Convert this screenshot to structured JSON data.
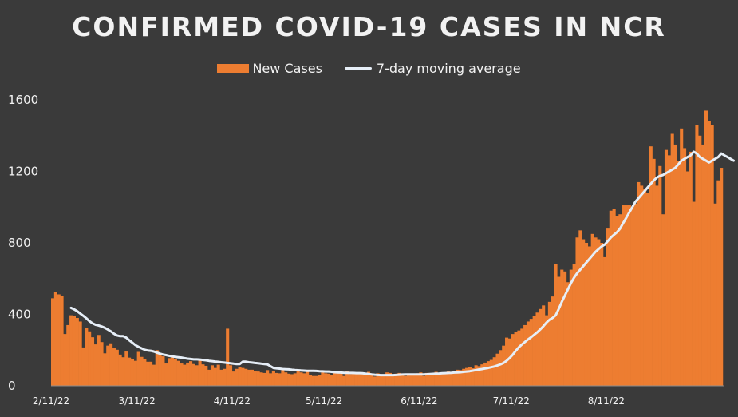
{
  "title": "CONFIRMED COVID-19 CASES IN NCR",
  "legend": {
    "bars_label": "New Cases",
    "line_label": "7-day moving average"
  },
  "colors": {
    "bars": "#ed7d31",
    "bar_shadow": "#222222",
    "line": "#e6eef7",
    "background": "#3a3a3a"
  },
  "chart_data": {
    "type": "bar",
    "title": "CONFIRMED COVID-19 CASES IN NCR",
    "xlabel": "",
    "ylabel": "",
    "ylim": [
      0,
      1600
    ],
    "yticks": [
      0,
      400,
      800,
      1200,
      1600
    ],
    "xticks": [
      "2/11/22",
      "3/11/22",
      "4/11/22",
      "5/11/22",
      "6/11/22",
      "7/11/22",
      "8/11/22"
    ],
    "grid": false,
    "legend_position": "top",
    "series": [
      {
        "name": "New Cases",
        "type": "bar",
        "start_date": "2/11/22",
        "values": [
          490,
          525,
          512,
          505,
          290,
          340,
          395,
          392,
          380,
          360,
          215,
          325,
          305,
          272,
          232,
          285,
          245,
          182,
          225,
          238,
          210,
          202,
          175,
          160,
          192,
          158,
          150,
          140,
          190,
          162,
          150,
          135,
          135,
          118,
          200,
          180,
          165,
          125,
          155,
          170,
          148,
          140,
          125,
          118,
          130,
          138,
          122,
          115,
          150,
          120,
          112,
          90,
          115,
          100,
          118,
          90,
          95,
          320,
          115,
          80,
          95,
          105,
          100,
          95,
          90,
          90,
          85,
          80,
          75,
          72,
          88,
          70,
          85,
          72,
          70,
          88,
          75,
          68,
          65,
          70,
          90,
          75,
          70,
          80,
          62,
          55,
          55,
          62,
          75,
          70,
          68,
          60,
          80,
          75,
          70,
          55,
          82,
          65,
          70,
          72,
          65,
          75,
          70,
          78,
          60,
          52,
          70,
          65,
          60,
          75,
          72,
          62,
          68,
          72,
          58,
          55,
          58,
          68,
          62,
          70,
          75,
          55,
          72,
          68,
          70,
          78,
          72,
          70,
          75,
          80,
          78,
          85,
          90,
          88,
          95,
          100,
          105,
          98,
          115,
          110,
          120,
          130,
          138,
          145,
          160,
          180,
          200,
          225,
          270,
          265,
          290,
          300,
          310,
          320,
          340,
          360,
          375,
          390,
          410,
          430,
          450,
          395,
          470,
          500,
          680,
          610,
          650,
          640,
          580,
          650,
          680,
          830,
          870,
          820,
          800,
          780,
          850,
          830,
          820,
          800,
          720,
          880,
          980,
          990,
          950,
          960,
          1010,
          1010,
          1010,
          1000,
          1020,
          1140,
          1120,
          1100,
          1080,
          1340,
          1270,
          1120,
          1230,
          960,
          1320,
          1290,
          1410,
          1350,
          1260,
          1440,
          1330,
          1200,
          1310,
          1030,
          1460,
          1400,
          1350,
          1540,
          1480,
          1460,
          1020,
          1150,
          1220
        ]
      },
      {
        "name": "7-day moving average",
        "type": "line",
        "start_index": 6,
        "values": [
          436,
          428,
          418,
          405,
          392,
          378,
          362,
          350,
          342,
          338,
          332,
          325,
          315,
          305,
          292,
          282,
          278,
          278,
          270,
          255,
          242,
          228,
          218,
          210,
          202,
          198,
          196,
          192,
          186,
          180,
          175,
          172,
          168,
          165,
          162,
          160,
          158,
          155,
          152,
          150,
          148,
          148,
          147,
          145,
          143,
          140,
          138,
          136,
          134,
          132,
          130,
          128,
          126,
          124,
          122,
          122,
          135,
          135,
          132,
          130,
          128,
          126,
          124,
          122,
          120,
          110,
          100,
          98,
          96,
          94,
          93,
          92,
          90,
          88,
          87,
          86,
          85,
          84,
          84,
          84,
          83,
          82,
          81,
          80,
          80,
          78,
          76,
          75,
          74,
          73,
          73,
          72,
          72,
          71,
          71,
          70,
          68,
          66,
          64,
          62,
          61,
          60,
          60,
          60,
          60,
          60,
          61,
          62,
          63,
          64,
          64,
          64,
          64,
          64,
          64,
          64,
          65,
          66,
          67,
          68,
          69,
          70,
          71,
          72,
          73,
          74,
          75,
          76,
          78,
          80,
          82,
          85,
          88,
          91,
          94,
          97,
          100,
          104,
          108,
          114,
          120,
          128,
          140,
          156,
          174,
          196,
          216,
          232,
          246,
          260,
          272,
          286,
          300,
          316,
          334,
          354,
          370,
          380,
          395,
          430,
          470,
          505,
          540,
          575,
          605,
          630,
          650,
          670,
          690,
          710,
          730,
          750,
          765,
          780,
          790,
          810,
          830,
          845,
          860,
          880,
          910,
          940,
          970,
          1000,
          1030,
          1050,
          1070,
          1090,
          1110,
          1130,
          1150,
          1165,
          1175,
          1180,
          1190,
          1200,
          1210,
          1220,
          1240,
          1260,
          1270,
          1280,
          1290,
          1310,
          1300,
          1280,
          1270,
          1260,
          1250,
          1260,
          1270,
          1280,
          1300,
          1290,
          1280,
          1270,
          1260
        ]
      }
    ]
  }
}
